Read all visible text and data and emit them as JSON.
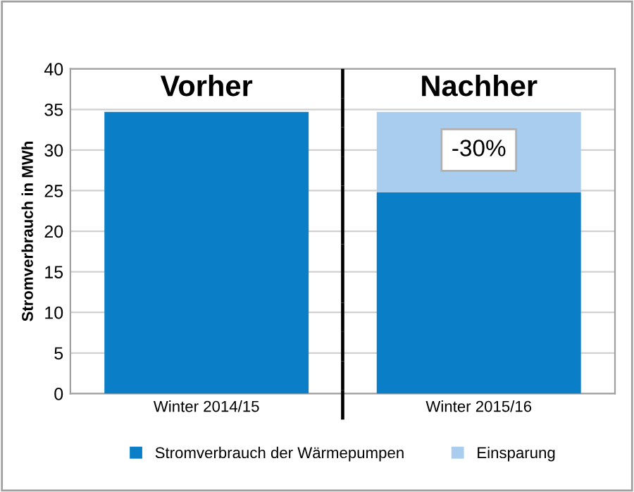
{
  "chart_data": {
    "type": "bar",
    "stacked": true,
    "categories": [
      "Winter 2014/15",
      "Winter 2015/16"
    ],
    "series": [
      {
        "name": "Stromverbrauch der Wärmepumpen",
        "color": "#0a7fc8",
        "values": [
          34.7,
          24.8
        ]
      },
      {
        "name": "Einsparung",
        "color": "#a9cdee",
        "values": [
          null,
          9.9
        ]
      }
    ],
    "ylabel": "Stromverbrauch in MWh",
    "ylim": [
      0,
      40
    ],
    "yticks": [
      0,
      5,
      10,
      15,
      20,
      25,
      30,
      35,
      40
    ],
    "grid": "y",
    "legend": "bottom",
    "annotations": [
      "Vorher",
      "Nachher",
      "-30%"
    ]
  }
}
